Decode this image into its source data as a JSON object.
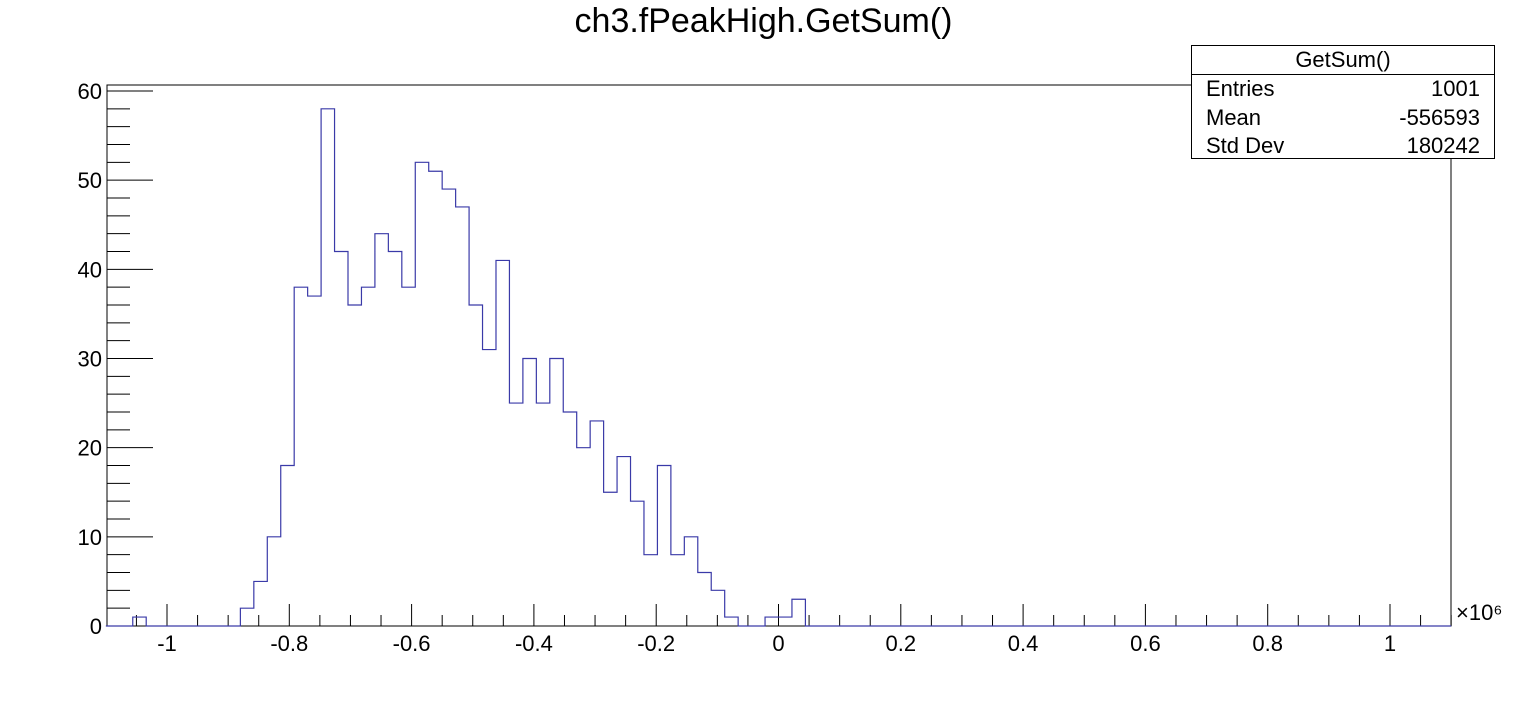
{
  "chart_data": {
    "type": "bar",
    "title": "ch3.fPeakHigh.GetSum()",
    "xlabel": "",
    "ylabel": "",
    "x_multiplier": "×10⁶",
    "bin_width": 0.022,
    "bin_start": -1.1,
    "xlim": [
      -1.1,
      1.1
    ],
    "ylim": [
      0,
      61
    ],
    "xticks": [
      -1,
      -0.8,
      -0.6,
      -0.4,
      -0.2,
      0,
      0.2,
      0.4,
      0.6,
      0.8,
      1
    ],
    "xtick_labels": [
      "-1",
      "-0.8",
      "-0.6",
      "-0.4",
      "-0.2",
      "0",
      "0.2",
      "0.4",
      "0.6",
      "0.8",
      "1"
    ],
    "yticks": [
      0,
      10,
      20,
      30,
      40,
      50,
      60
    ],
    "ytick_labels": [
      "0",
      "10",
      "20",
      "30",
      "40",
      "50",
      "60"
    ],
    "values": [
      0,
      0,
      1,
      0,
      0,
      0,
      0,
      0,
      0,
      0,
      2,
      5,
      10,
      18,
      38,
      37,
      58,
      42,
      36,
      38,
      44,
      42,
      38,
      52,
      51,
      49,
      47,
      36,
      31,
      41,
      25,
      30,
      25,
      30,
      24,
      20,
      23,
      15,
      19,
      14,
      8,
      18,
      8,
      10,
      6,
      4,
      1,
      0,
      0,
      1,
      1,
      3,
      0,
      0,
      0,
      0,
      0,
      0,
      0,
      0,
      0,
      0,
      0,
      0,
      0,
      0,
      0,
      0,
      0,
      0,
      0,
      0,
      0,
      0,
      0,
      0,
      0,
      0,
      0,
      0,
      0,
      0,
      0,
      0,
      0,
      0,
      0,
      0,
      0,
      0,
      0,
      0,
      0,
      0,
      0,
      0,
      0,
      0,
      0,
      0
    ],
    "line_color": "#3a3aa8",
    "grid": false,
    "legend": "none"
  },
  "stats": {
    "name": "GetSum()",
    "rows": [
      {
        "label": "Entries",
        "value": "1001"
      },
      {
        "label": "Mean",
        "value": "-556593"
      },
      {
        "label": "Std Dev",
        "value": "180242"
      }
    ]
  }
}
